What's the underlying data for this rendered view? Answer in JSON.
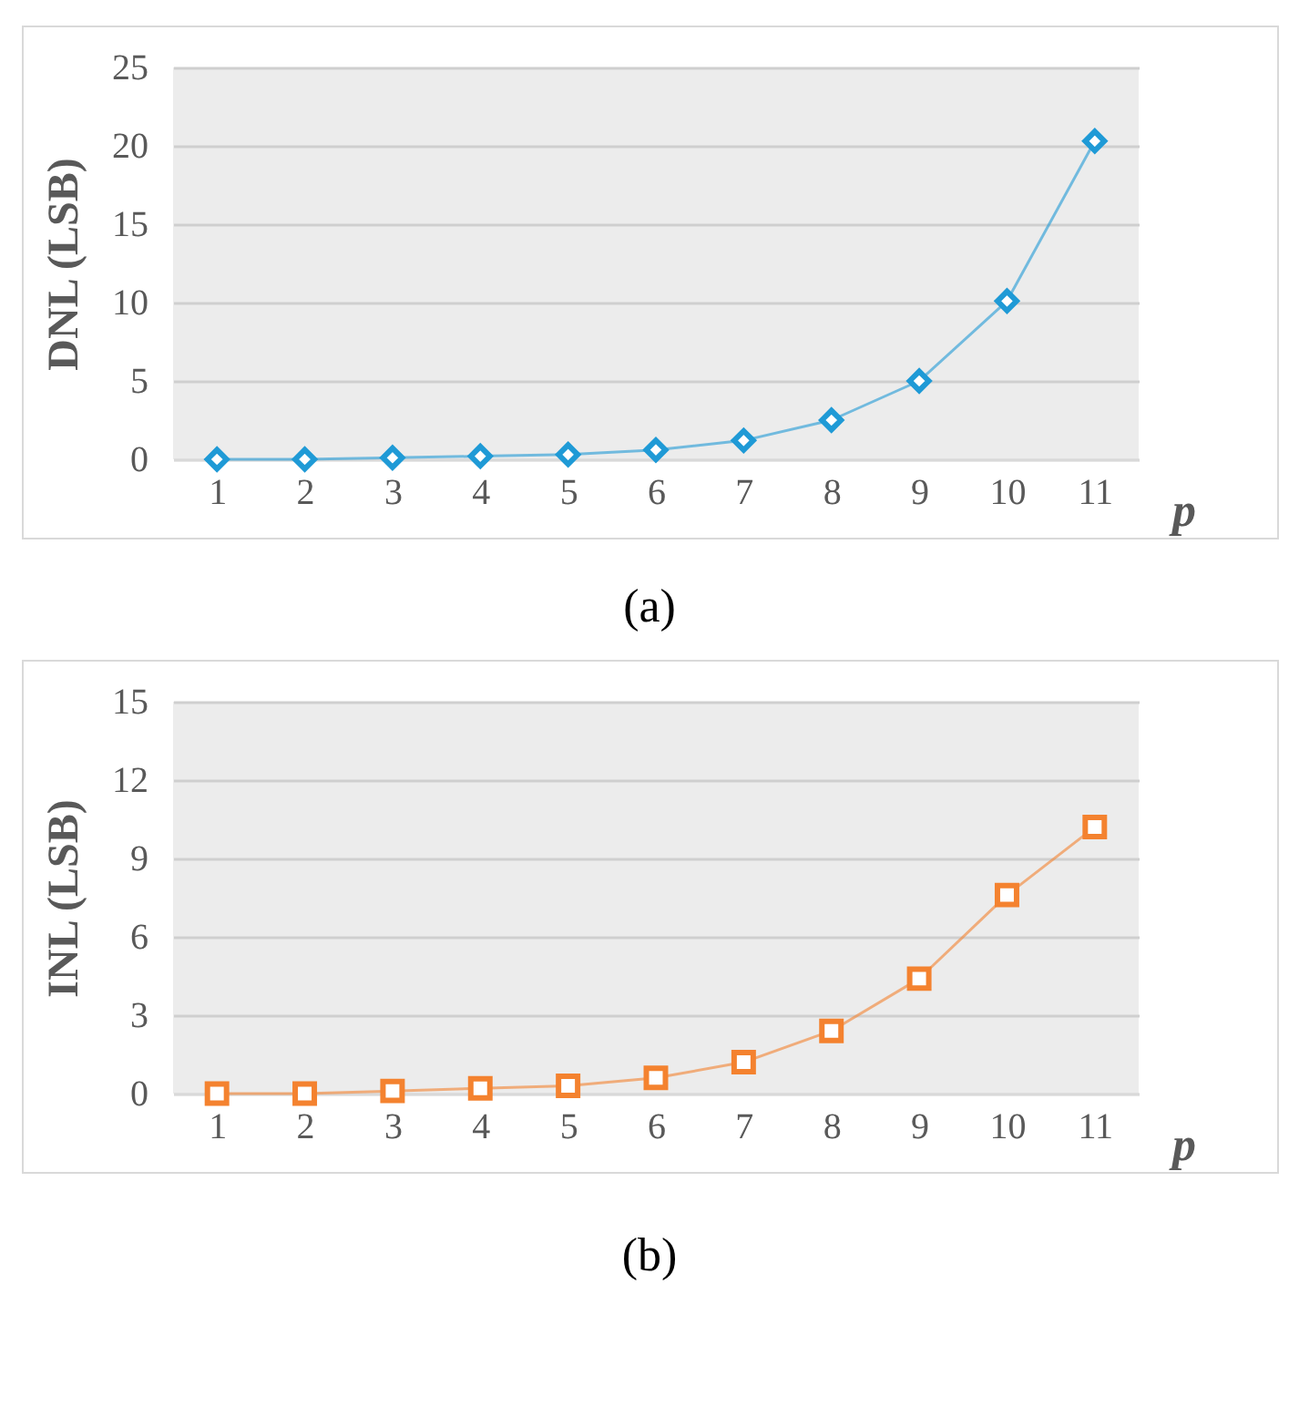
{
  "chart_data": [
    {
      "type": "line",
      "categories": [
        "1",
        "2",
        "3",
        "4",
        "5",
        "6",
        "7",
        "8",
        "9",
        "10",
        "11"
      ],
      "xlabel": "p",
      "ylabel": "DNL (LSB)",
      "series": [
        {
          "color": "#1f9ad6",
          "values": [
            0,
            0,
            0.1,
            0.2,
            0.3,
            0.6,
            1.2,
            2.5,
            5,
            10.1,
            20.3
          ]
        }
      ],
      "ylim": [
        0,
        25
      ],
      "yticks": [
        0,
        5,
        10,
        15,
        20,
        25
      ],
      "grid": "y",
      "marker": "diamond",
      "annotations": [
        "(a)"
      ]
    },
    {
      "type": "line",
      "categories": [
        "1",
        "2",
        "3",
        "4",
        "5",
        "6",
        "7",
        "8",
        "9",
        "10",
        "11"
      ],
      "xlabel": "p",
      "ylabel": "INL (LSB)",
      "series": [
        {
          "color": "#f4822f",
          "values": [
            0,
            0,
            0.1,
            0.2,
            0.3,
            0.6,
            1.2,
            2.4,
            4.4,
            7.6,
            10.2
          ]
        }
      ],
      "ylim": [
        0,
        15
      ],
      "yticks": [
        0,
        3,
        6,
        9,
        12,
        15
      ],
      "grid": "y",
      "marker": "square",
      "annotations": [
        "(b)"
      ]
    }
  ]
}
